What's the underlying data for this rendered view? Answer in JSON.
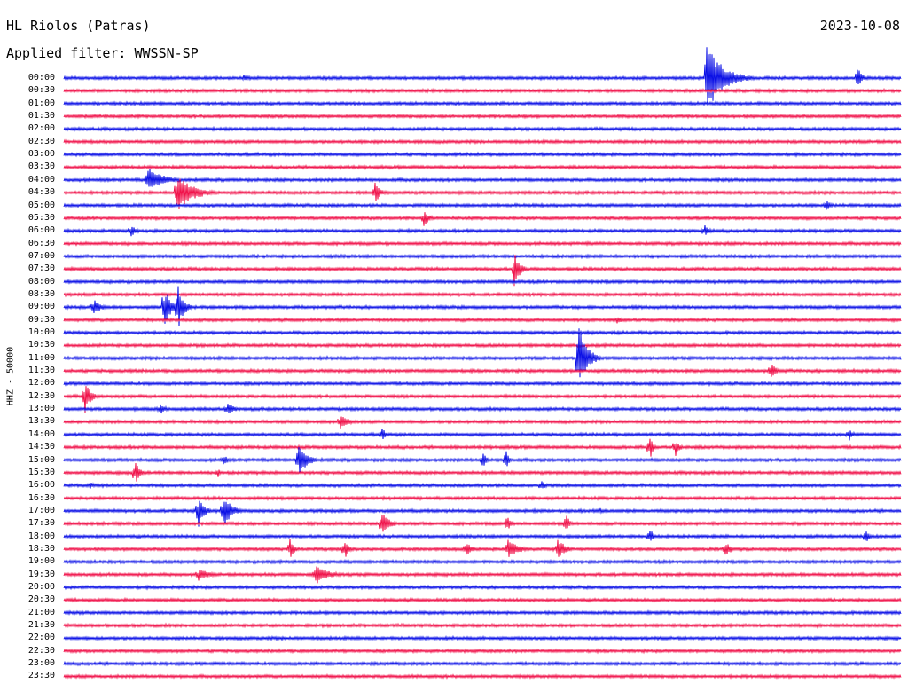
{
  "header": {
    "station": "HL Riolos (Patras)",
    "date": "2023-10-08",
    "filter_label": "Applied filter: WWSSN-SP"
  },
  "channel_label": "HHZ - 50000",
  "colors": {
    "trace_a": "#0b10e6",
    "trace_b": "#f0124a",
    "background": "#ffffff"
  },
  "chart_data": {
    "type": "helicorder",
    "time_labels": [
      "00:00",
      "00:30",
      "01:00",
      "01:30",
      "02:00",
      "02:30",
      "03:00",
      "03:30",
      "04:00",
      "04:30",
      "05:00",
      "05:30",
      "06:00",
      "06:30",
      "07:00",
      "07:30",
      "08:00",
      "08:30",
      "09:00",
      "09:30",
      "10:00",
      "10:30",
      "11:00",
      "11:30",
      "12:00",
      "12:30",
      "13:00",
      "13:30",
      "14:00",
      "14:30",
      "15:00",
      "15:30",
      "16:00",
      "16:30",
      "17:00",
      "17:30",
      "18:00",
      "18:30",
      "19:00",
      "19:30",
      "20:00",
      "20:30",
      "21:00",
      "21:30",
      "22:00",
      "22:30",
      "23:00",
      "23:30"
    ],
    "line_colors": [
      "blue",
      "red"
    ],
    "minutes_per_line": 30,
    "events": [
      {
        "line": 0,
        "at": 0.768,
        "amp": 40,
        "dur": 0.06
      },
      {
        "line": 0,
        "at": 0.948,
        "amp": 14,
        "dur": 0.015
      },
      {
        "line": 0,
        "at": 0.215,
        "amp": 4,
        "dur": 0.03
      },
      {
        "line": 8,
        "at": 0.1,
        "amp": 14,
        "dur": 0.06
      },
      {
        "line": 9,
        "at": 0.135,
        "amp": 22,
        "dur": 0.06
      },
      {
        "line": 9,
        "at": 0.371,
        "amp": 14,
        "dur": 0.02
      },
      {
        "line": 10,
        "at": 0.91,
        "amp": 7,
        "dur": 0.02
      },
      {
        "line": 11,
        "at": 0.43,
        "amp": 10,
        "dur": 0.02
      },
      {
        "line": 12,
        "at": 0.08,
        "amp": 8,
        "dur": 0.02
      },
      {
        "line": 12,
        "at": 0.765,
        "amp": 8,
        "dur": 0.02
      },
      {
        "line": 15,
        "at": 0.538,
        "amp": 20,
        "dur": 0.02
      },
      {
        "line": 18,
        "at": 0.035,
        "amp": 10,
        "dur": 0.03
      },
      {
        "line": 18,
        "at": 0.12,
        "amp": 28,
        "dur": 0.02
      },
      {
        "line": 18,
        "at": 0.136,
        "amp": 30,
        "dur": 0.02
      },
      {
        "line": 19,
        "at": 0.66,
        "amp": 6,
        "dur": 0.02
      },
      {
        "line": 22,
        "at": 0.615,
        "amp": 40,
        "dur": 0.03
      },
      {
        "line": 23,
        "at": 0.845,
        "amp": 12,
        "dur": 0.015
      },
      {
        "line": 25,
        "at": 0.025,
        "amp": 20,
        "dur": 0.02
      },
      {
        "line": 26,
        "at": 0.115,
        "amp": 7,
        "dur": 0.02
      },
      {
        "line": 26,
        "at": 0.195,
        "amp": 7,
        "dur": 0.03
      },
      {
        "line": 27,
        "at": 0.33,
        "amp": 9,
        "dur": 0.03
      },
      {
        "line": 28,
        "at": 0.38,
        "amp": 8,
        "dur": 0.015
      },
      {
        "line": 28,
        "at": 0.938,
        "amp": 8,
        "dur": 0.015
      },
      {
        "line": 29,
        "at": 0.7,
        "amp": 16,
        "dur": 0.01
      },
      {
        "line": 29,
        "at": 0.73,
        "amp": 12,
        "dur": 0.015
      },
      {
        "line": 30,
        "at": 0.28,
        "amp": 22,
        "dur": 0.03
      },
      {
        "line": 30,
        "at": 0.19,
        "amp": 7,
        "dur": 0.02
      },
      {
        "line": 30,
        "at": 0.5,
        "amp": 10,
        "dur": 0.015
      },
      {
        "line": 30,
        "at": 0.528,
        "amp": 14,
        "dur": 0.01
      },
      {
        "line": 31,
        "at": 0.085,
        "amp": 16,
        "dur": 0.015
      },
      {
        "line": 31,
        "at": 0.184,
        "amp": 6,
        "dur": 0.01
      },
      {
        "line": 32,
        "at": 0.03,
        "amp": 5,
        "dur": 0.02
      },
      {
        "line": 32,
        "at": 0.57,
        "amp": 7,
        "dur": 0.015
      },
      {
        "line": 34,
        "at": 0.16,
        "amp": 22,
        "dur": 0.02
      },
      {
        "line": 34,
        "at": 0.19,
        "amp": 20,
        "dur": 0.03
      },
      {
        "line": 34,
        "at": 0.64,
        "amp": 5,
        "dur": 0.01
      },
      {
        "line": 35,
        "at": 0.38,
        "amp": 16,
        "dur": 0.025
      },
      {
        "line": 35,
        "at": 0.53,
        "amp": 14,
        "dur": 0.01
      },
      {
        "line": 35,
        "at": 0.6,
        "amp": 14,
        "dur": 0.01
      },
      {
        "line": 36,
        "at": 0.7,
        "amp": 12,
        "dur": 0.01
      },
      {
        "line": 36,
        "at": 0.958,
        "amp": 12,
        "dur": 0.01
      },
      {
        "line": 37,
        "at": 0.27,
        "amp": 12,
        "dur": 0.015
      },
      {
        "line": 37,
        "at": 0.335,
        "amp": 14,
        "dur": 0.015
      },
      {
        "line": 37,
        "at": 0.48,
        "amp": 10,
        "dur": 0.02
      },
      {
        "line": 37,
        "at": 0.53,
        "amp": 12,
        "dur": 0.04
      },
      {
        "line": 37,
        "at": 0.59,
        "amp": 12,
        "dur": 0.03
      },
      {
        "line": 37,
        "at": 0.79,
        "amp": 10,
        "dur": 0.02
      },
      {
        "line": 39,
        "at": 0.16,
        "amp": 8,
        "dur": 0.04
      },
      {
        "line": 39,
        "at": 0.3,
        "amp": 12,
        "dur": 0.05
      },
      {
        "line": 43,
        "at": 0.9,
        "amp": 3,
        "dur": 0.01
      }
    ]
  }
}
